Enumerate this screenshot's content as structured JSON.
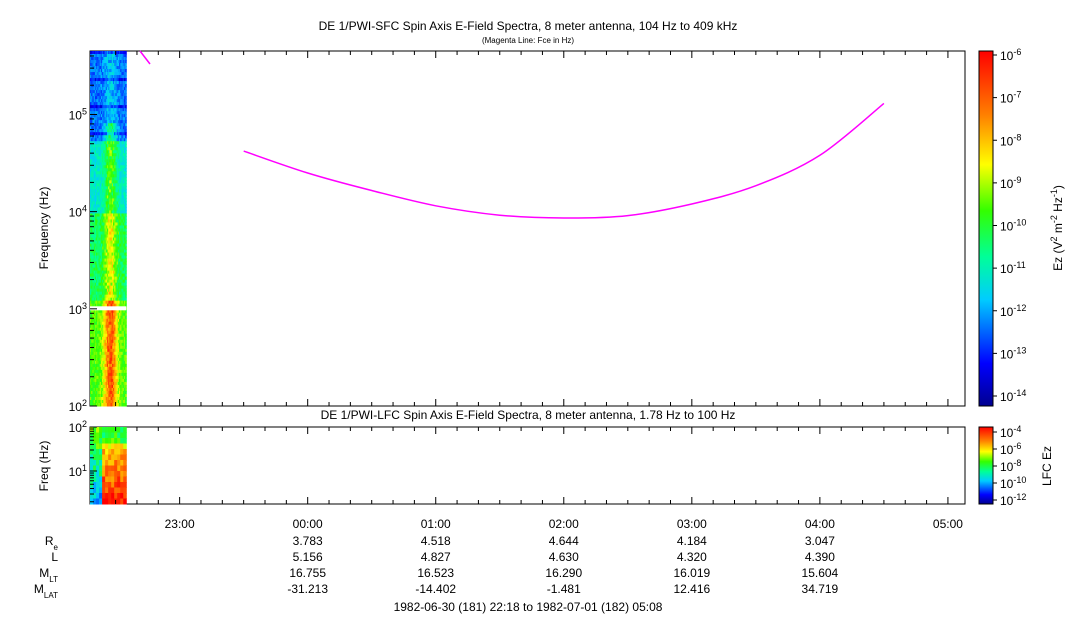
{
  "chart_data": [
    {
      "type": "heatmap",
      "title": "DE 1/PWI-SFC  Spin Axis E-Field Spectra, 8 meter antenna, 104 Hz to 409 kHz",
      "subtitle": "(Magenta Line: Fce in Hz)",
      "ylabel": "Frequency (Hz)",
      "yscale": "log",
      "ylim": [
        100,
        450000
      ],
      "yticks": [
        {
          "base": "10",
          "exp": "2",
          "value": 100
        },
        {
          "base": "10",
          "exp": "3",
          "value": 1000
        },
        {
          "base": "10",
          "exp": "4",
          "value": 10000
        },
        {
          "base": "10",
          "exp": "5",
          "value": 100000
        }
      ],
      "data_coverage": {
        "start": "22:18",
        "end": "22:35"
      },
      "fce_line": {
        "color": "#ff00ff",
        "x": [
          "23:30",
          "00:00",
          "00:30",
          "01:00",
          "01:30",
          "02:00",
          "02:30",
          "03:00",
          "03:30",
          "04:00",
          "04:30"
        ],
        "y": [
          42000,
          25000,
          16500,
          11500,
          9200,
          8600,
          9100,
          12000,
          18500,
          38000,
          130000
        ]
      },
      "colorbar": {
        "label_base": "Ez (V",
        "label_sup1": "2",
        "label_mid1": " m",
        "label_sup2": "-2",
        "label_mid2": " Hz",
        "label_sup3": "-1",
        "label_end": ")",
        "scale": "log",
        "range": [
          1e-14,
          1e-06
        ],
        "ticks": [
          {
            "base": "10",
            "exp": "-6"
          },
          {
            "base": "10",
            "exp": "-7"
          },
          {
            "base": "10",
            "exp": "-8"
          },
          {
            "base": "10",
            "exp": "-9"
          },
          {
            "base": "10",
            "exp": "-10"
          },
          {
            "base": "10",
            "exp": "-11"
          },
          {
            "base": "10",
            "exp": "-12"
          },
          {
            "base": "10",
            "exp": "-13"
          },
          {
            "base": "10",
            "exp": "-14"
          }
        ]
      }
    },
    {
      "type": "heatmap",
      "title": "DE 1/PWI-LFC  Spin Axis E-Field Spectra, 8 meter antenna, 1.78 Hz to 100 Hz",
      "ylabel": "Freq (Hz)",
      "yscale": "log",
      "ylim": [
        1.78,
        100
      ],
      "yticks": [
        {
          "base": "10",
          "exp": "2",
          "value": 100
        },
        {
          "base": "10",
          "exp": "1",
          "value": 10
        }
      ],
      "data_coverage": {
        "start": "22:18",
        "end": "22:35"
      },
      "colorbar": {
        "label": "LFC Ez",
        "scale": "log",
        "range": [
          1e-12,
          0.0001
        ],
        "ticks": [
          {
            "base": "10",
            "exp": "-4"
          },
          {
            "base": "10",
            "exp": "-6"
          },
          {
            "base": "10",
            "exp": "-8"
          },
          {
            "base": "10",
            "exp": "-10"
          },
          {
            "base": "10",
            "exp": "-12"
          }
        ]
      }
    }
  ],
  "time_axis": {
    "start": "22:18",
    "end": "05:08",
    "ticks": [
      "23:00",
      "00:00",
      "01:00",
      "02:00",
      "03:00",
      "04:00",
      "05:00"
    ]
  },
  "ephemeris": {
    "rows": [
      {
        "name": "Re",
        "label_main": "R",
        "label_sub": "e",
        "values": [
          "3.783",
          "4.518",
          "4.644",
          "4.184",
          "3.047"
        ]
      },
      {
        "name": "L",
        "label_main": "L",
        "label_sub": "",
        "values": [
          "5.156",
          "4.827",
          "4.630",
          "4.320",
          "4.390"
        ]
      },
      {
        "name": "MLT",
        "label_main": "M",
        "label_sub": "LT",
        "values": [
          "16.755",
          "16.523",
          "16.290",
          "16.019",
          "15.604"
        ]
      },
      {
        "name": "MLAT",
        "label_main": "M",
        "label_sub": "LAT",
        "values": [
          "-31.213",
          "-14.402",
          "-1.481",
          "12.416",
          "34.719"
        ]
      }
    ],
    "times": [
      "00:00",
      "01:00",
      "02:00",
      "03:00",
      "04:00"
    ]
  },
  "date_range": "1982-06-30 (181) 22:18 to 1982-07-01 (182) 05:08"
}
